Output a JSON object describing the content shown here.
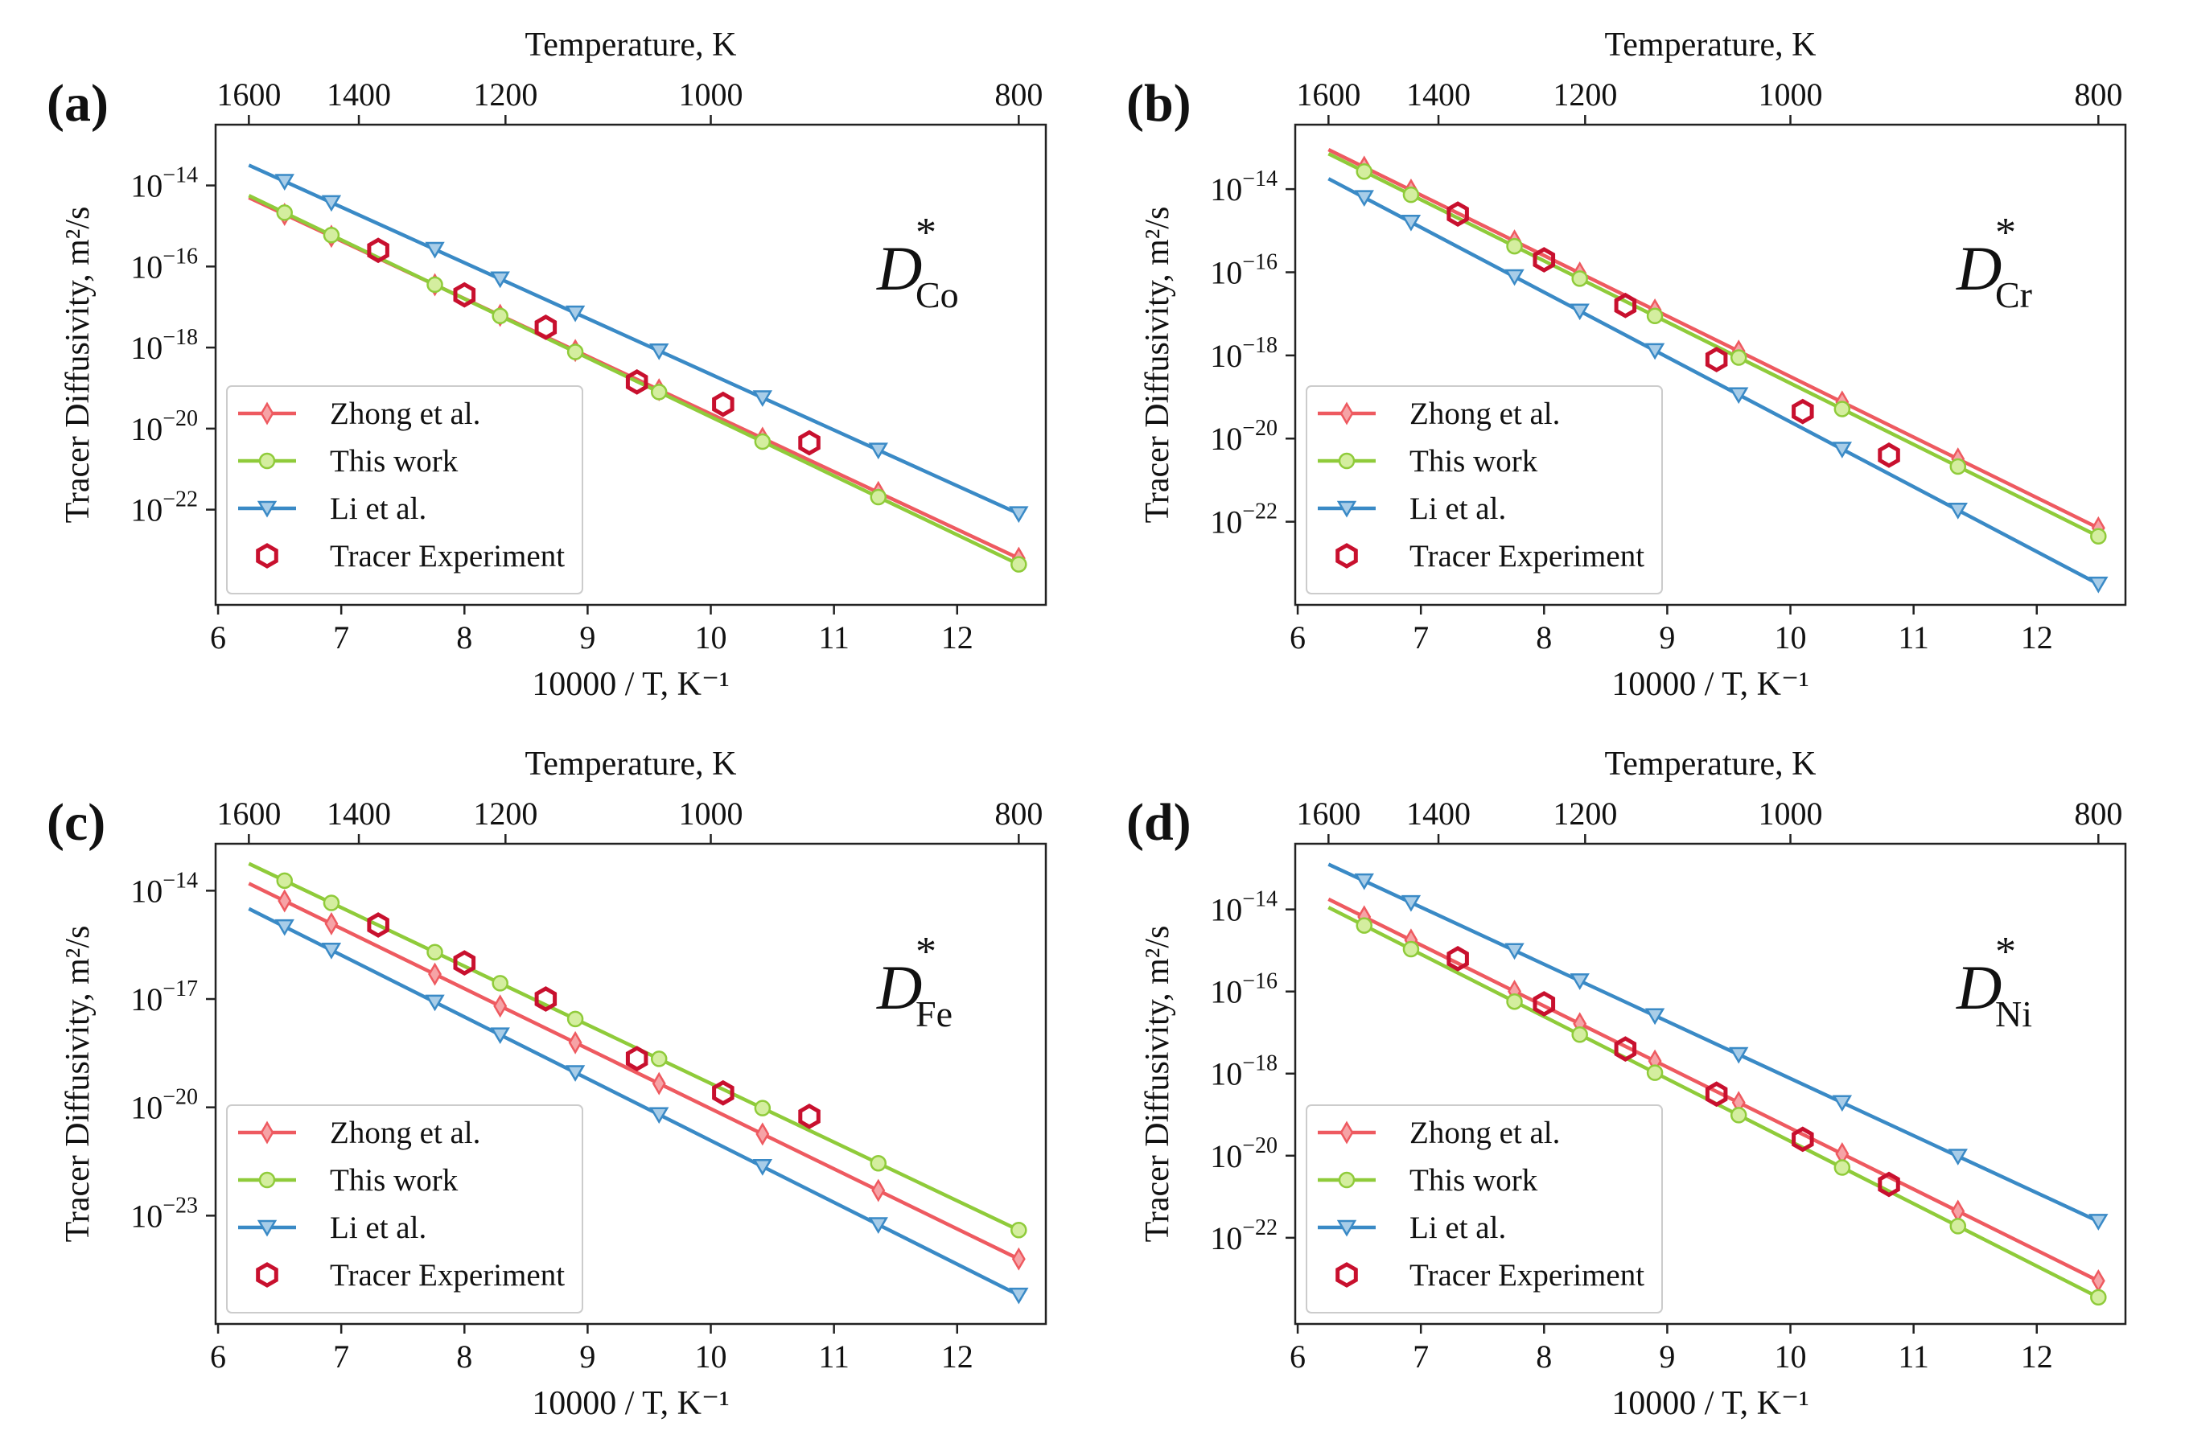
{
  "colors": {
    "zhong": "#ee5a60",
    "this_work": "#8fcb3a",
    "li": "#3a8ac6",
    "tracer": "#c8102e"
  },
  "chart_data": [
    {
      "type": "line",
      "panel_label": "(a)",
      "species_symbol": "D",
      "species_sub": "Co",
      "species_sup": "*",
      "xlabel": "10000 / T, K⁻¹",
      "ylabel": "Tracer Diffusivity, m²/s",
      "top_xlabel": "Temperature, K",
      "xlim": [
        5.98,
        12.72
      ],
      "ylog_lim": [
        -24.35,
        -12.5
      ],
      "x_ticks": [
        6,
        7,
        8,
        9,
        10,
        11,
        12
      ],
      "y_ticks": [
        {
          "value": -14,
          "label": "−14"
        },
        {
          "value": -16,
          "label": "−16"
        },
        {
          "value": -18,
          "label": "−18"
        },
        {
          "value": -20,
          "label": "−20"
        },
        {
          "value": -22,
          "label": "−22"
        }
      ],
      "y_tick_base": "10",
      "top_ticks": [
        {
          "value": 1600,
          "label": "1600"
        },
        {
          "value": 1400,
          "label": "1400"
        },
        {
          "value": 1200,
          "label": "1200"
        },
        {
          "value": 1000,
          "label": "1000"
        },
        {
          "value": 800,
          "label": "800"
        }
      ],
      "legend_position": "lower-left",
      "marker_x": [
        6.54,
        6.92,
        7.76,
        8.29,
        8.9,
        9.58,
        10.42,
        11.36,
        12.5
      ],
      "series": [
        {
          "name": "Zhong et al.",
          "marker": "thin-diamond",
          "line_x": [
            6.25,
            12.5
          ],
          "line_logy": [
            -14.3,
            -23.2
          ]
        },
        {
          "name": "This work",
          "marker": "circle",
          "line_x": [
            6.25,
            12.5
          ],
          "line_logy": [
            -14.25,
            -23.35
          ]
        },
        {
          "name": "Li et al.",
          "marker": "triangle-down",
          "line_x": [
            6.25,
            12.5
          ],
          "line_logy": [
            -13.5,
            -22.1
          ]
        }
      ],
      "tracer": {
        "name": "Tracer Experiment",
        "x": [
          7.3,
          8.0,
          8.66,
          9.4,
          10.1,
          10.8
        ],
        "logy": [
          -15.6,
          -16.7,
          -17.5,
          -18.85,
          -19.4,
          -20.35
        ]
      }
    },
    {
      "type": "line",
      "panel_label": "(b)",
      "species_symbol": "D",
      "species_sub": "Cr",
      "species_sup": "*",
      "xlabel": "10000 / T, K⁻¹",
      "ylabel": "Tracer Diffusivity, m²/s",
      "top_xlabel": "Temperature, K",
      "xlim": [
        5.98,
        12.72
      ],
      "ylog_lim": [
        -24.0,
        -12.45
      ],
      "x_ticks": [
        6,
        7,
        8,
        9,
        10,
        11,
        12
      ],
      "y_ticks": [
        {
          "value": -14,
          "label": "−14"
        },
        {
          "value": -16,
          "label": "−16"
        },
        {
          "value": -18,
          "label": "−18"
        },
        {
          "value": -20,
          "label": "−20"
        },
        {
          "value": -22,
          "label": "−22"
        }
      ],
      "y_tick_base": "10",
      "top_ticks": [
        {
          "value": 1600,
          "label": "1600"
        },
        {
          "value": 1400,
          "label": "1400"
        },
        {
          "value": 1200,
          "label": "1200"
        },
        {
          "value": 1000,
          "label": "1000"
        },
        {
          "value": 800,
          "label": "800"
        }
      ],
      "legend_position": "lower-left",
      "marker_x": [
        6.54,
        6.92,
        7.76,
        8.29,
        8.9,
        9.58,
        10.42,
        11.36,
        12.5
      ],
      "series": [
        {
          "name": "Zhong et al.",
          "marker": "thin-diamond",
          "line_x": [
            6.25,
            12.5
          ],
          "line_logy": [
            -13.05,
            -22.15
          ]
        },
        {
          "name": "This work",
          "marker": "circle",
          "line_x": [
            6.25,
            12.5
          ],
          "line_logy": [
            -13.15,
            -22.35
          ]
        },
        {
          "name": "Li et al.",
          "marker": "triangle-down",
          "line_x": [
            6.25,
            12.5
          ],
          "line_logy": [
            -13.75,
            -23.5
          ]
        }
      ],
      "tracer": {
        "name": "Tracer Experiment",
        "x": [
          7.3,
          8.0,
          8.66,
          9.4,
          10.1,
          10.8
        ],
        "logy": [
          -14.6,
          -15.7,
          -16.8,
          -18.1,
          -19.35,
          -20.4
        ]
      }
    },
    {
      "type": "line",
      "panel_label": "(c)",
      "species_symbol": "D",
      "species_sub": "Fe",
      "species_sup": "*",
      "xlabel": "10000 / T, K⁻¹",
      "ylabel": "Tracer Diffusivity, m²/s",
      "top_xlabel": "Temperature, K",
      "xlim": [
        5.98,
        12.72
      ],
      "ylog_lim": [
        -26.0,
        -12.7
      ],
      "x_ticks": [
        6,
        7,
        8,
        9,
        10,
        11,
        12
      ],
      "y_ticks": [
        {
          "value": -14,
          "label": "−14"
        },
        {
          "value": -17,
          "label": "−17"
        },
        {
          "value": -20,
          "label": "−20"
        },
        {
          "value": -23,
          "label": "−23"
        }
      ],
      "y_tick_base": "10",
      "top_ticks": [
        {
          "value": 1600,
          "label": "1600"
        },
        {
          "value": 1400,
          "label": "1400"
        },
        {
          "value": 1200,
          "label": "1200"
        },
        {
          "value": 1000,
          "label": "1000"
        },
        {
          "value": 800,
          "label": "800"
        }
      ],
      "legend_position": "lower-left",
      "marker_x": [
        6.54,
        6.92,
        7.76,
        8.29,
        8.9,
        9.58,
        10.42,
        11.36,
        12.5
      ],
      "series": [
        {
          "name": "Zhong et al.",
          "marker": "thin-diamond",
          "line_x": [
            6.25,
            12.5
          ],
          "line_logy": [
            -13.8,
            -24.2
          ]
        },
        {
          "name": "This work",
          "marker": "circle",
          "line_x": [
            6.25,
            12.5
          ],
          "line_logy": [
            -13.25,
            -23.4
          ]
        },
        {
          "name": "Li et al.",
          "marker": "triangle-down",
          "line_x": [
            6.25,
            12.5
          ],
          "line_logy": [
            -14.5,
            -25.2
          ]
        }
      ],
      "tracer": {
        "name": "Tracer Experiment",
        "x": [
          7.3,
          8.0,
          8.66,
          9.4,
          10.1,
          10.8
        ],
        "logy": [
          -14.95,
          -16.0,
          -17.0,
          -18.65,
          -19.6,
          -20.25
        ]
      }
    },
    {
      "type": "line",
      "panel_label": "(d)",
      "species_symbol": "D",
      "species_sub": "Ni",
      "species_sup": "*",
      "xlabel": "10000 / T, K⁻¹",
      "ylabel": "Tracer Diffusivity, m²/s",
      "top_xlabel": "Temperature, K",
      "xlim": [
        5.98,
        12.72
      ],
      "ylog_lim": [
        -24.1,
        -12.4
      ],
      "x_ticks": [
        6,
        7,
        8,
        9,
        10,
        11,
        12
      ],
      "y_ticks": [
        {
          "value": -14,
          "label": "−14"
        },
        {
          "value": -16,
          "label": "−16"
        },
        {
          "value": -18,
          "label": "−18"
        },
        {
          "value": -20,
          "label": "−20"
        },
        {
          "value": -22,
          "label": "−22"
        }
      ],
      "y_tick_base": "10",
      "top_ticks": [
        {
          "value": 1600,
          "label": "1600"
        },
        {
          "value": 1400,
          "label": "1400"
        },
        {
          "value": 1200,
          "label": "1200"
        },
        {
          "value": 1000,
          "label": "1000"
        },
        {
          "value": 800,
          "label": "800"
        }
      ],
      "legend_position": "lower-left",
      "marker_x": [
        6.54,
        6.92,
        7.76,
        8.29,
        8.9,
        9.58,
        10.42,
        11.36,
        12.5
      ],
      "series": [
        {
          "name": "Zhong et al.",
          "marker": "thin-diamond",
          "line_x": [
            6.25,
            12.5
          ],
          "line_logy": [
            -13.75,
            -23.05
          ]
        },
        {
          "name": "This work",
          "marker": "circle",
          "line_x": [
            6.25,
            12.5
          ],
          "line_logy": [
            -13.95,
            -23.45
          ]
        },
        {
          "name": "Li et al.",
          "marker": "triangle-down",
          "line_x": [
            6.25,
            12.5
          ],
          "line_logy": [
            -12.9,
            -21.6
          ]
        }
      ],
      "tracer": {
        "name": "Tracer Experiment",
        "x": [
          7.3,
          8.0,
          8.66,
          9.4,
          10.1,
          10.8
        ],
        "logy": [
          -15.2,
          -16.3,
          -17.4,
          -18.5,
          -19.6,
          -20.7
        ]
      }
    }
  ]
}
